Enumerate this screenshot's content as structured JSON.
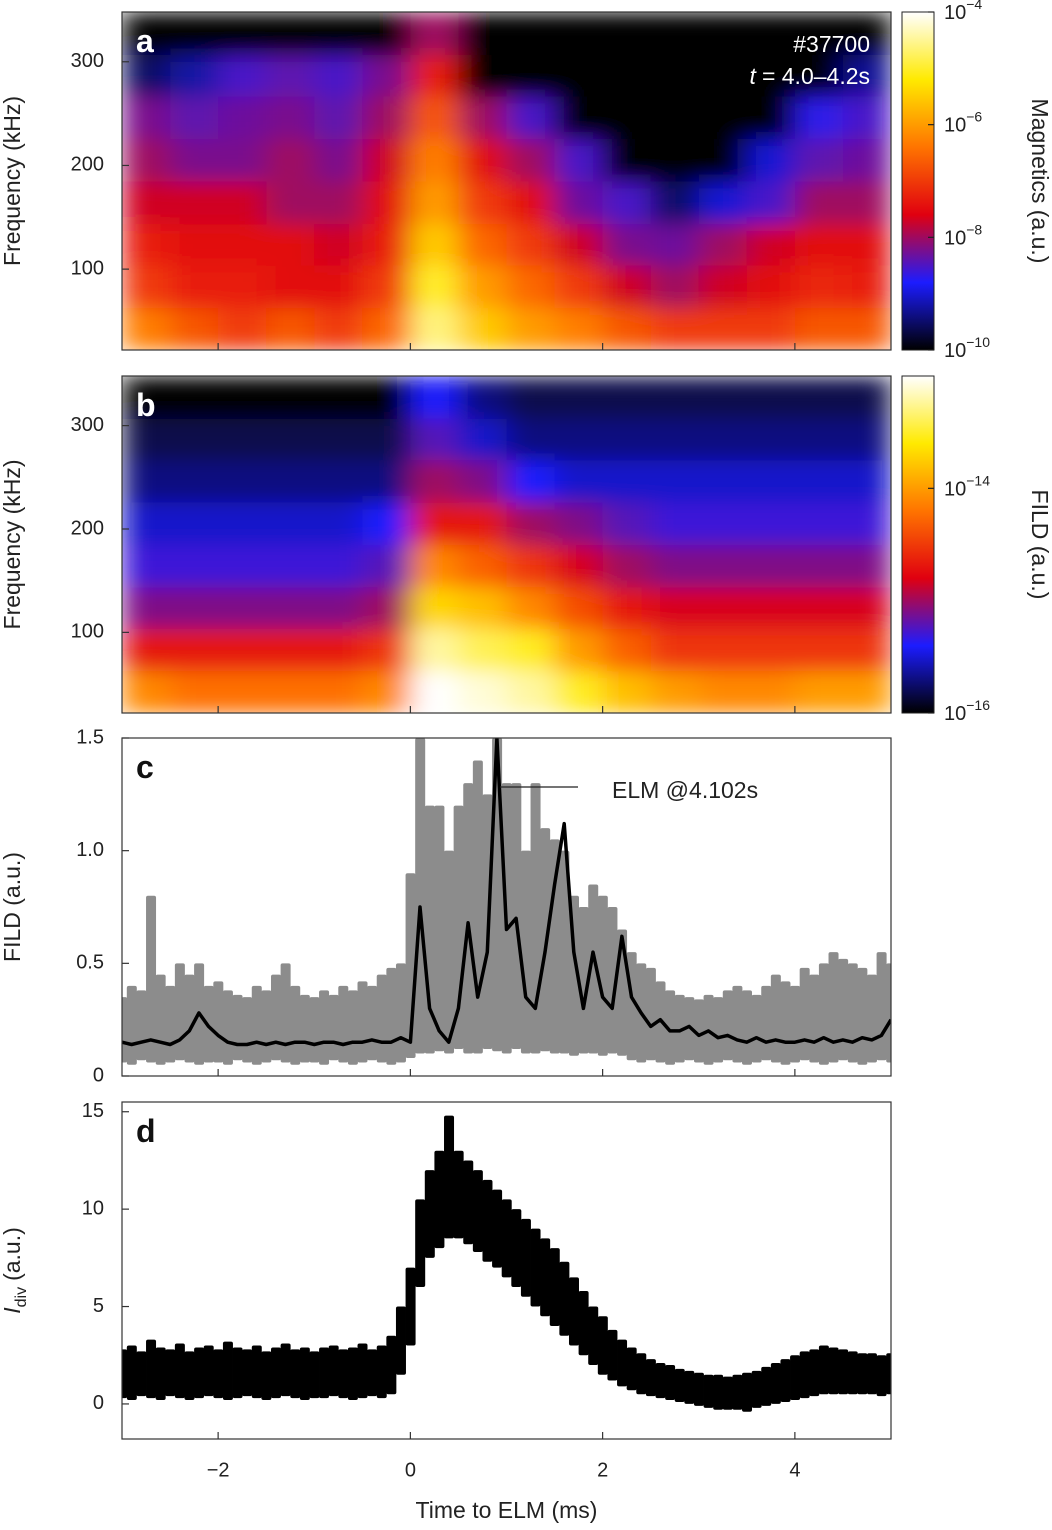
{
  "chart_data": [
    {
      "type": "heatmap",
      "panel": "a",
      "ylabel": "Frequency (kHz)",
      "shot": "#37700",
      "time_window": {
        "var": "t",
        "text": "= 4.0–4.2s"
      },
      "xlim": [
        -3,
        5
      ],
      "xticks": [
        -2,
        0,
        2,
        4
      ],
      "ylim": [
        22,
        348
      ],
      "yticks": [
        100,
        200,
        300
      ],
      "x_bins": [
        -3,
        -2.5,
        -2,
        -1.5,
        -1,
        -0.5,
        0,
        0.5,
        1,
        1.5,
        2,
        2.5,
        3,
        3.5,
        4,
        4.5,
        5
      ],
      "y_bins": [
        22,
        63,
        104,
        144,
        185,
        226,
        267,
        307,
        348
      ],
      "z": [
        [
          5e-07,
          2e-07,
          1e-07,
          2e-07,
          1e-07,
          3e-07,
          2.5e-05,
          3e-06,
          1e-06,
          5e-07,
          2e-07,
          1e-07,
          1e-07,
          1e-07,
          2e-07,
          2e-07
        ],
        [
          1e-07,
          5e-08,
          5e-08,
          3e-08,
          3e-08,
          1e-07,
          1e-05,
          1e-06,
          3e-07,
          1e-07,
          2e-08,
          1e-08,
          2e-08,
          3e-08,
          6e-08,
          5e-08
        ],
        [
          5e-08,
          3e-08,
          3e-08,
          3e-08,
          2e-08,
          5e-08,
          3e-06,
          3e-07,
          1e-07,
          2e-08,
          6e-09,
          5e-09,
          1e-08,
          2e-08,
          3e-08,
          3e-08
        ],
        [
          2e-08,
          2e-08,
          2e-08,
          1e-08,
          1e-08,
          3e-08,
          1e-06,
          1e-07,
          3e-08,
          5e-09,
          3e-09,
          3e-10,
          1e-09,
          3e-09,
          1e-08,
          1e-08
        ],
        [
          1e-08,
          6e-09,
          6e-09,
          1e-08,
          6e-09,
          2e-08,
          5e-07,
          3e-08,
          1e-08,
          3e-09,
          1e-10,
          1e-10,
          1e-10,
          1e-09,
          4e-09,
          5e-09
        ],
        [
          6e-09,
          4e-09,
          5e-09,
          6e-09,
          4e-09,
          1e-08,
          2e-07,
          1e-08,
          3e-09,
          1e-10,
          1e-10,
          1e-10,
          1e-10,
          1e-10,
          2e-09,
          3e-09
        ],
        [
          3e-10,
          6e-10,
          3e-09,
          4e-09,
          3e-09,
          6e-09,
          5e-08,
          1e-10,
          1e-10,
          1e-10,
          1e-10,
          1e-10,
          1e-10,
          1e-10,
          1e-10,
          5e-10
        ],
        [
          1e-10,
          1e-10,
          1e-10,
          1e-10,
          1e-10,
          1e-10,
          1e-08,
          1e-10,
          1e-10,
          1e-10,
          1e-10,
          1e-10,
          1e-10,
          1e-10,
          1e-10,
          1e-10
        ]
      ],
      "colorbar": {
        "label": "Magnetics (a.u.)",
        "log": true,
        "lim": [
          1e-10,
          0.0001
        ],
        "ticks": [
          {
            "value": 0.0001,
            "label": "10",
            "sup": "−4"
          },
          {
            "value": 1e-06,
            "label": "10",
            "sup": "−6"
          },
          {
            "value": 1e-08,
            "label": "10",
            "sup": "−8"
          },
          {
            "value": 1e-10,
            "label": "10",
            "sup": "−10"
          }
        ],
        "colormap": [
          "#000000",
          "#1c1cff",
          "#e00010",
          "#ff7400",
          "#ffea00",
          "#ffffff"
        ]
      }
    },
    {
      "type": "heatmap",
      "panel": "b",
      "ylabel": "Frequency (kHz)",
      "xlim": [
        -3,
        5
      ],
      "xticks": [
        -2,
        0,
        2,
        4
      ],
      "ylim": [
        22,
        348
      ],
      "yticks": [
        100,
        200,
        300
      ],
      "x_bins": [
        -3,
        -2.5,
        -2,
        -1.5,
        -1,
        -0.5,
        0,
        0.5,
        1,
        1.5,
        2,
        2.5,
        3,
        3.5,
        4,
        4.5,
        5
      ],
      "y_bins": [
        22,
        63,
        104,
        144,
        185,
        226,
        267,
        307,
        348
      ],
      "z": [
        [
          8e-15,
          6e-15,
          6e-15,
          6e-15,
          6e-15,
          8e-15,
          1e-13,
          8e-14,
          6e-14,
          3e-14,
          1.5e-14,
          1e-14,
          8e-15,
          8e-15,
          1e-14,
          1e-14
        ],
        [
          2e-15,
          2e-15,
          2e-15,
          2e-15,
          2e-15,
          3e-15,
          6e-14,
          4e-14,
          3e-14,
          1e-14,
          5e-15,
          3e-15,
          3e-15,
          3e-15,
          3e-15,
          3e-15
        ],
        [
          8e-16,
          8e-16,
          8e-16,
          8e-16,
          8e-16,
          1e-15,
          2e-14,
          1.5e-14,
          8e-15,
          4e-15,
          2e-15,
          1.5e-15,
          1.5e-15,
          1.5e-15,
          1.5e-15,
          1.5e-15
        ],
        [
          5e-16,
          5e-16,
          5e-16,
          5e-16,
          5e-16,
          6e-16,
          8e-15,
          5e-15,
          3e-15,
          1.5e-15,
          1e-15,
          8e-16,
          8e-16,
          8e-16,
          8e-16,
          8e-16
        ],
        [
          3e-16,
          3e-16,
          3e-16,
          3e-16,
          3e-16,
          4e-16,
          2e-15,
          2e-15,
          1e-15,
          8e-16,
          6e-16,
          5e-16,
          5e-16,
          5e-16,
          5e-16,
          5e-16
        ],
        [
          2e-16,
          2e-16,
          2e-16,
          2e-16,
          2e-16,
          2e-16,
          1e-15,
          8e-16,
          4e-16,
          3e-16,
          3e-16,
          3e-16,
          3e-16,
          3e-16,
          3e-16,
          3e-16
        ],
        [
          1.5e-16,
          1.5e-16,
          1.5e-16,
          1.5e-16,
          1.5e-16,
          1.5e-16,
          6e-16,
          3e-16,
          2e-16,
          2e-16,
          2e-16,
          2e-16,
          2e-16,
          2e-16,
          2e-16,
          2e-16
        ],
        [
          1e-16,
          1e-16,
          1e-16,
          1e-16,
          1e-16,
          1e-16,
          4e-16,
          2e-16,
          1.5e-16,
          1.5e-16,
          1.5e-16,
          1.5e-16,
          1.5e-16,
          1.5e-16,
          1.5e-16,
          1.5e-16
        ]
      ],
      "colorbar": {
        "label": "FILD (a.u.)",
        "log": true,
        "lim": [
          1e-16,
          1e-13
        ],
        "ticks": [
          {
            "value": 1e-14,
            "label": "10",
            "sup": "−14"
          },
          {
            "value": 1e-16,
            "label": "10",
            "sup": "−16"
          }
        ],
        "colormap": [
          "#000000",
          "#1c1cff",
          "#e00010",
          "#ff7400",
          "#ffea00",
          "#ffffff"
        ]
      }
    },
    {
      "type": "band_line",
      "panel": "c",
      "ylabel": "FILD (a.u.)",
      "annotation": "ELM @4.102s",
      "xlim": [
        -3,
        5
      ],
      "xticks": [
        -2,
        0,
        2,
        4
      ],
      "ylim": [
        0,
        1.5
      ],
      "yticks": [
        0,
        0.5,
        {
          "value": 1,
          "label": "1.0"
        },
        1.5
      ],
      "x": [
        -3,
        -2.9,
        -2.8,
        -2.7,
        -2.6,
        -2.5,
        -2.4,
        -2.3,
        -2.2,
        -2.1,
        -2,
        -1.9,
        -1.8,
        -1.7,
        -1.6,
        -1.5,
        -1.4,
        -1.3,
        -1.2,
        -1.1,
        -1,
        -0.9,
        -0.8,
        -0.7,
        -0.6,
        -0.5,
        -0.4,
        -0.3,
        -0.2,
        -0.1,
        0,
        0.1,
        0.2,
        0.3,
        0.4,
        0.5,
        0.6,
        0.7,
        0.8,
        0.9,
        1,
        1.1,
        1.2,
        1.3,
        1.4,
        1.5,
        1.6,
        1.7,
        1.8,
        1.9,
        2,
        2.1,
        2.2,
        2.3,
        2.4,
        2.5,
        2.6,
        2.7,
        2.8,
        2.9,
        3,
        3.1,
        3.2,
        3.3,
        3.4,
        3.5,
        3.6,
        3.7,
        3.8,
        3.9,
        4,
        4.1,
        4.2,
        4.3,
        4.4,
        4.5,
        4.6,
        4.7,
        4.8,
        4.9,
        5
      ],
      "band": {
        "color": "#8c8c8c",
        "low": [
          0.06,
          0.05,
          0.07,
          0.06,
          0.05,
          0.06,
          0.07,
          0.06,
          0.05,
          0.06,
          0.06,
          0.05,
          0.07,
          0.06,
          0.05,
          0.06,
          0.07,
          0.06,
          0.05,
          0.06,
          0.06,
          0.05,
          0.07,
          0.06,
          0.05,
          0.06,
          0.07,
          0.06,
          0.05,
          0.06,
          0.08,
          0.1,
          0.1,
          0.11,
          0.1,
          0.12,
          0.1,
          0.1,
          0.12,
          0.11,
          0.1,
          0.12,
          0.1,
          0.1,
          0.11,
          0.1,
          0.1,
          0.09,
          0.1,
          0.1,
          0.09,
          0.1,
          0.09,
          0.07,
          0.06,
          0.07,
          0.06,
          0.05,
          0.06,
          0.07,
          0.06,
          0.05,
          0.06,
          0.07,
          0.06,
          0.05,
          0.06,
          0.07,
          0.06,
          0.05,
          0.06,
          0.07,
          0.06,
          0.05,
          0.06,
          0.07,
          0.06,
          0.05,
          0.06,
          0.07,
          0.06
        ],
        "high": [
          0.35,
          0.4,
          0.38,
          0.8,
          0.45,
          0.4,
          0.5,
          0.45,
          0.5,
          0.4,
          0.42,
          0.38,
          0.36,
          0.35,
          0.4,
          0.38,
          0.45,
          0.5,
          0.4,
          0.36,
          0.35,
          0.38,
          0.36,
          0.4,
          0.38,
          0.42,
          0.4,
          0.45,
          0.48,
          0.5,
          0.9,
          1.5,
          1.2,
          1.2,
          1,
          1.2,
          1.3,
          1.4,
          1.25,
          1.5,
          1.3,
          1.3,
          1,
          1.3,
          1.1,
          1.05,
          1,
          0.8,
          0.75,
          0.85,
          0.8,
          0.75,
          0.65,
          0.55,
          0.5,
          0.48,
          0.42,
          0.38,
          0.36,
          0.35,
          0.34,
          0.36,
          0.35,
          0.38,
          0.4,
          0.38,
          0.36,
          0.4,
          0.45,
          0.42,
          0.4,
          0.48,
          0.45,
          0.5,
          0.55,
          0.52,
          0.5,
          0.48,
          0.45,
          0.55,
          0.5
        ]
      },
      "line": {
        "color": "#000000",
        "values": [
          0.15,
          0.14,
          0.15,
          0.16,
          0.15,
          0.14,
          0.16,
          0.2,
          0.28,
          0.22,
          0.18,
          0.15,
          0.14,
          0.14,
          0.15,
          0.14,
          0.15,
          0.14,
          0.15,
          0.15,
          0.14,
          0.15,
          0.15,
          0.14,
          0.15,
          0.15,
          0.16,
          0.15,
          0.15,
          0.17,
          0.15,
          0.75,
          0.3,
          0.2,
          0.15,
          0.3,
          0.68,
          0.35,
          0.55,
          1.5,
          0.65,
          0.7,
          0.35,
          0.3,
          0.55,
          0.85,
          1.12,
          0.55,
          0.3,
          0.55,
          0.35,
          0.3,
          0.62,
          0.35,
          0.28,
          0.22,
          0.25,
          0.2,
          0.2,
          0.22,
          0.18,
          0.2,
          0.17,
          0.18,
          0.16,
          0.15,
          0.17,
          0.15,
          0.16,
          0.15,
          0.15,
          0.16,
          0.15,
          0.17,
          0.15,
          0.16,
          0.15,
          0.17,
          0.16,
          0.18,
          0.25
        ]
      }
    },
    {
      "type": "band",
      "panel": "d",
      "ylabel": {
        "main": "I",
        "sub": "div",
        "unit": "(a.u.)"
      },
      "xlabel": "Time to ELM (ms)",
      "xlim": [
        -3,
        5
      ],
      "xticks": [
        {
          "value": -2,
          "label": "−2"
        },
        0,
        2,
        4
      ],
      "ylim": [
        -1.8,
        15.5
      ],
      "yticks": [
        0,
        5,
        10,
        15
      ],
      "x": [
        -3,
        -2.9,
        -2.8,
        -2.7,
        -2.6,
        -2.5,
        -2.4,
        -2.3,
        -2.2,
        -2.1,
        -2,
        -1.9,
        -1.8,
        -1.7,
        -1.6,
        -1.5,
        -1.4,
        -1.3,
        -1.2,
        -1.1,
        -1,
        -0.9,
        -0.8,
        -0.7,
        -0.6,
        -0.5,
        -0.4,
        -0.3,
        -0.2,
        -0.1,
        0,
        0.1,
        0.2,
        0.3,
        0.4,
        0.5,
        0.6,
        0.7,
        0.8,
        0.9,
        1,
        1.1,
        1.2,
        1.3,
        1.4,
        1.5,
        1.6,
        1.7,
        1.8,
        1.9,
        2,
        2.1,
        2.2,
        2.3,
        2.4,
        2.5,
        2.6,
        2.7,
        2.8,
        2.9,
        3,
        3.1,
        3.2,
        3.3,
        3.4,
        3.5,
        3.6,
        3.7,
        3.8,
        3.9,
        4,
        4.1,
        4.2,
        4.3,
        4.4,
        4.5,
        4.6,
        4.7,
        4.8,
        4.9,
        5
      ],
      "band": {
        "color": "#000000",
        "low": [
          0.3,
          0.2,
          0.4,
          0.3,
          0.2,
          0.4,
          0.3,
          0.2,
          0.3,
          0.4,
          0.3,
          0.2,
          0.3,
          0.4,
          0.3,
          0.2,
          0.3,
          0.4,
          0.3,
          0.2,
          0.3,
          0.3,
          0.4,
          0.3,
          0.2,
          0.3,
          0.4,
          0.3,
          0.5,
          1.5,
          3,
          6,
          7.5,
          8,
          8.5,
          8.5,
          8.2,
          7.8,
          7.3,
          7,
          6.5,
          6,
          5.5,
          5,
          4.5,
          4,
          3.5,
          3,
          2.5,
          2,
          1.5,
          1.2,
          0.9,
          0.7,
          0.5,
          0.4,
          0.3,
          0.2,
          0.1,
          0,
          -0.1,
          -0.2,
          -0.3,
          -0.3,
          -0.3,
          -0.4,
          -0.2,
          -0.1,
          0,
          0.1,
          0.2,
          0.3,
          0.4,
          0.5,
          0.5,
          0.5,
          0.5,
          0.5,
          0.5,
          0.4,
          0.5
        ],
        "high": [
          2.8,
          3,
          2.7,
          3.3,
          2.9,
          2.8,
          3.1,
          2.7,
          2.9,
          3,
          2.8,
          3.2,
          2.9,
          2.8,
          3,
          2.7,
          2.9,
          3.1,
          2.8,
          2.9,
          2.7,
          2.9,
          3,
          2.8,
          2.9,
          3.1,
          2.8,
          3,
          3.5,
          5,
          7,
          10.5,
          12,
          13,
          14.8,
          13,
          12.5,
          12,
          11.5,
          11,
          10.5,
          10,
          9.5,
          9,
          8.5,
          8,
          7.3,
          6.5,
          5.8,
          5,
          4.5,
          3.8,
          3.3,
          2.9,
          2.6,
          2.3,
          2.1,
          2,
          1.8,
          1.7,
          1.6,
          1.5,
          1.5,
          1.4,
          1.5,
          1.6,
          1.7,
          1.9,
          2.1,
          2.3,
          2.5,
          2.7,
          2.8,
          3,
          2.9,
          2.8,
          2.7,
          2.6,
          2.6,
          2.5,
          2.6
        ]
      }
    }
  ]
}
